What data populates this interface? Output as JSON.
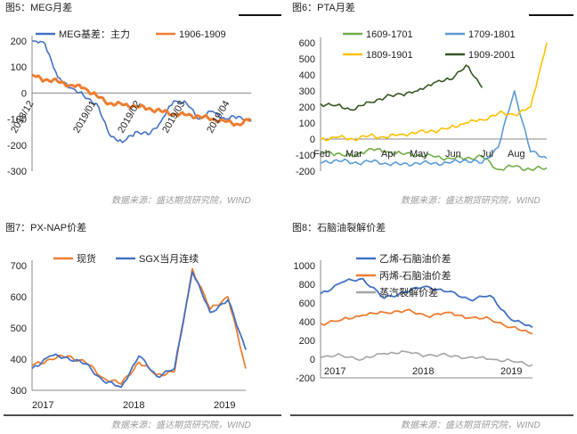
{
  "source_text": "数据来源：盛达期货研究院，WIND",
  "charts": [
    {
      "title": "图5：MEG月差",
      "legend": [
        "MEG基差：主力",
        "1906-1909"
      ],
      "y_ticks": [
        "200",
        "100",
        "0",
        "-100",
        "-200",
        "-300"
      ],
      "x_ticks": [
        "2018/12",
        "2019/01",
        "2019/02",
        "2019/03",
        "2019/04"
      ]
    },
    {
      "title": "图6：PTA月差",
      "legend": [
        "1609-1701",
        "1709-1801",
        "1809-1901",
        "1909-2001"
      ],
      "y_ticks": [
        "600",
        "500",
        "400",
        "300",
        "200",
        "100",
        "0",
        "-100",
        "-200"
      ],
      "x_ticks": [
        "Feb",
        "Mar",
        "Apr",
        "May",
        "Jun",
        "Jul",
        "Aug"
      ]
    },
    {
      "title": "图7：PX-NAP价差",
      "legend": [
        "现货",
        "SGX当月连续"
      ],
      "y_ticks": [
        "700",
        "600",
        "500",
        "400",
        "300"
      ],
      "x_ticks": [
        "2017",
        "2018",
        "2019"
      ]
    },
    {
      "title": "图8：石脑油裂解价差",
      "legend": [
        "乙烯-石脑油价差",
        "丙烯-石脑油价差",
        "蒸汽裂解价差"
      ],
      "y_ticks": [
        "1000",
        "800",
        "600",
        "400",
        "200",
        "0",
        "-200"
      ],
      "x_ticks": [
        "2017",
        "2018",
        "2019"
      ]
    }
  ],
  "chart_data": [
    {
      "type": "line",
      "title": "图5：MEG月差",
      "ylim": [
        -300,
        200
      ],
      "x": [
        "2018/12",
        "2018/12",
        "2018/12",
        "2019/01",
        "2019/01",
        "2019/01",
        "2019/01",
        "2019/02",
        "2019/02",
        "2019/02",
        "2019/03",
        "2019/03",
        "2019/03",
        "2019/03",
        "2019/04",
        "2019/04",
        "2019/04",
        "2019/04"
      ],
      "series": [
        {
          "name": "MEG基差：主力",
          "color": "#4472c4",
          "values": [
            200,
            190,
            60,
            20,
            -10,
            -40,
            -160,
            -190,
            -150,
            -160,
            -110,
            -30,
            -40,
            -100,
            -70,
            -100,
            -90,
            -110
          ]
        },
        {
          "name": "1906-1909",
          "color": "#ed7d31",
          "values": [
            70,
            50,
            45,
            30,
            20,
            -10,
            -40,
            -45,
            -50,
            -60,
            -70,
            -80,
            -85,
            -90,
            -100,
            -110,
            -120,
            -100
          ]
        }
      ]
    },
    {
      "type": "line",
      "title": "图6：PTA月差",
      "ylim": [
        -200,
        600
      ],
      "x": [
        "Feb",
        "Feb",
        "Mar",
        "Mar",
        "Apr",
        "Apr",
        "May",
        "May",
        "Jun",
        "Jun",
        "Jul",
        "Jul",
        "Aug",
        "Aug",
        "Sep"
      ],
      "series": [
        {
          "name": "1609-1701",
          "color": "#70ad47",
          "values": [
            -80,
            -90,
            -110,
            -60,
            -80,
            -90,
            -100,
            -110,
            -120,
            -120,
            -110,
            -190,
            -170,
            -190,
            -180
          ]
        },
        {
          "name": "1709-1801",
          "color": "#5b9bd5",
          "values": [
            -150,
            -130,
            -150,
            -140,
            -150,
            -160,
            -150,
            -150,
            -150,
            -130,
            -150,
            -50,
            300,
            -80,
            -120
          ]
        },
        {
          "name": "1809-1901",
          "color": "#ffc000",
          "values": [
            0,
            10,
            0,
            20,
            10,
            30,
            40,
            50,
            70,
            100,
            120,
            160,
            150,
            200,
            600
          ]
        },
        {
          "name": "1909-2001",
          "color": "#375623",
          "values": [
            220,
            210,
            180,
            230,
            260,
            280,
            300,
            350,
            370,
            460,
            320,
            null,
            null,
            null,
            null
          ]
        }
      ]
    },
    {
      "type": "line",
      "title": "图7：PX-NAP价差",
      "ylim": [
        300,
        700
      ],
      "x": [
        "2017",
        "2017",
        "2017",
        "2017",
        "2018",
        "2018",
        "2018",
        "2018",
        "2018",
        "2018",
        "2019",
        "2019",
        "2019"
      ],
      "series": [
        {
          "name": "现货",
          "color": "#ed7d31",
          "values": [
            380,
            400,
            410,
            390,
            340,
            320,
            390,
            350,
            360,
            690,
            560,
            600,
            370
          ]
        },
        {
          "name": "SGX当月连续",
          "color": "#4472c4",
          "values": [
            370,
            410,
            405,
            385,
            330,
            310,
            410,
            345,
            370,
            680,
            550,
            590,
            430
          ]
        }
      ]
    },
    {
      "type": "line",
      "title": "图8：石脑油裂解价差",
      "ylim": [
        -200,
        1000
      ],
      "x": [
        "2017",
        "2017",
        "2017",
        "2017",
        "2018",
        "2018",
        "2018",
        "2018",
        "2019",
        "2019",
        "2019"
      ],
      "series": [
        {
          "name": "乙烯-石脑油价差",
          "color": "#4472c4",
          "values": [
            700,
            820,
            860,
            650,
            720,
            780,
            720,
            640,
            680,
            420,
            340
          ]
        },
        {
          "name": "丙烯-石脑油价差",
          "color": "#ed7d31",
          "values": [
            380,
            420,
            470,
            500,
            520,
            460,
            500,
            440,
            430,
            340,
            270
          ]
        },
        {
          "name": "蒸汽裂解价差",
          "color": "#a5a5a5",
          "values": [
            20,
            40,
            0,
            60,
            80,
            40,
            40,
            20,
            0,
            -20,
            -60
          ]
        }
      ]
    }
  ]
}
